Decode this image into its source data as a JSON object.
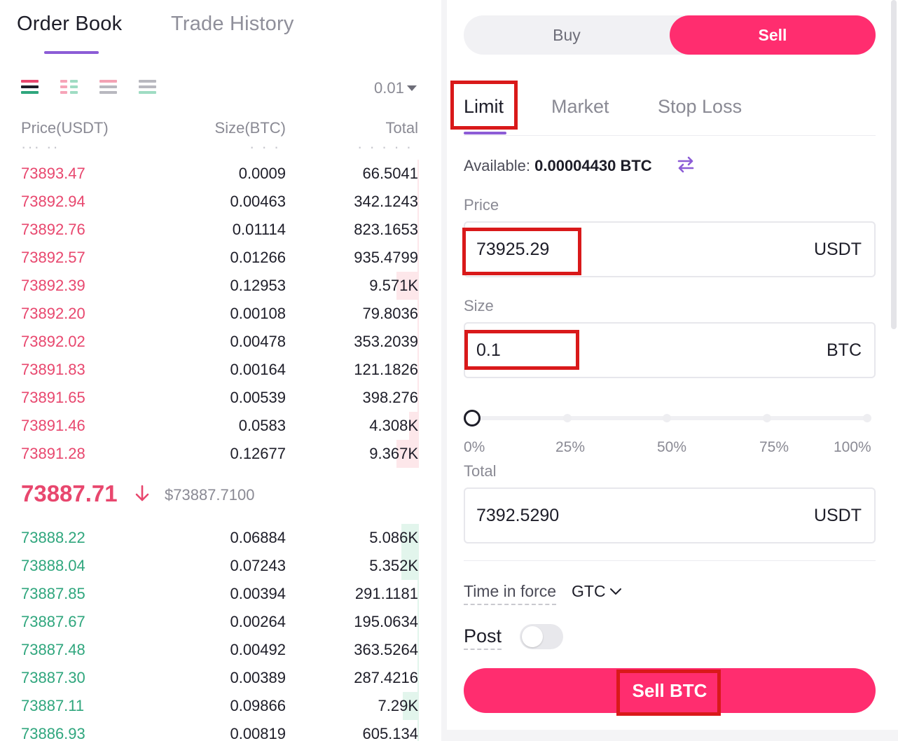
{
  "order_book": {
    "tabs": [
      "Order Book",
      "Trade History"
    ],
    "precision": "0.01",
    "columns": {
      "price": "Price(USDT)",
      "size": "Size(BTC)",
      "total": "Total"
    },
    "asks": [
      {
        "price": "73893.47",
        "size": "0.0009",
        "total": "66.5041",
        "depth": 0.005
      },
      {
        "price": "73892.94",
        "size": "0.00463",
        "total": "342.1243",
        "depth": 0.005
      },
      {
        "price": "73892.76",
        "size": "0.01114",
        "total": "823.1653",
        "depth": 0.01
      },
      {
        "price": "73892.57",
        "size": "0.01266",
        "total": "935.4799",
        "depth": 0.01
      },
      {
        "price": "73892.39",
        "size": "0.12953",
        "total": "9.571K",
        "depth": 0.14
      },
      {
        "price": "73892.20",
        "size": "0.00108",
        "total": "79.8036",
        "depth": 0.005
      },
      {
        "price": "73892.02",
        "size": "0.00478",
        "total": "353.2039",
        "depth": 0.005
      },
      {
        "price": "73891.83",
        "size": "0.00164",
        "total": "121.1826",
        "depth": 0.005
      },
      {
        "price": "73891.65",
        "size": "0.00539",
        "total": "398.276",
        "depth": 0.005
      },
      {
        "price": "73891.46",
        "size": "0.0583",
        "total": "4.308K",
        "depth": 0.06
      },
      {
        "price": "73891.28",
        "size": "0.12677",
        "total": "9.367K",
        "depth": 0.14
      }
    ],
    "last_price": "73887.71",
    "last_price_usd": "$73887.7100",
    "bids": [
      {
        "price": "73888.22",
        "size": "0.06884",
        "total": "5.086K",
        "depth": 0.11
      },
      {
        "price": "73888.04",
        "size": "0.07243",
        "total": "5.352K",
        "depth": 0.11
      },
      {
        "price": "73887.85",
        "size": "0.00394",
        "total": "291.1181",
        "depth": 0.005
      },
      {
        "price": "73887.67",
        "size": "0.00264",
        "total": "195.0634",
        "depth": 0.005
      },
      {
        "price": "73887.48",
        "size": "0.00492",
        "total": "363.5264",
        "depth": 0.005
      },
      {
        "price": "73887.30",
        "size": "0.00389",
        "total": "287.4216",
        "depth": 0.005
      },
      {
        "price": "73887.11",
        "size": "0.09866",
        "total": "7.29K",
        "depth": 0.1
      },
      {
        "price": "73886.93",
        "size": "0.00819",
        "total": "605.134",
        "depth": 0.005
      }
    ]
  },
  "trade_panel": {
    "side_buy": "Buy",
    "side_sell": "Sell",
    "order_tabs": [
      "Limit",
      "Market",
      "Stop Loss"
    ],
    "available_label": "Available:",
    "available_value": "0.00004430 BTC",
    "price_label": "Price",
    "price_value": "73925.29",
    "price_unit": "USDT",
    "size_label": "Size",
    "size_value": "0.1",
    "size_unit": "BTC",
    "slider_value": 0,
    "slider_marks": [
      "0%",
      "25%",
      "50%",
      "75%",
      "100%"
    ],
    "total_label": "Total",
    "total_value": "7392.5290",
    "total_unit": "USDT",
    "tif_label": "Time in force",
    "tif_value": "GTC",
    "post_label": "Post",
    "post_enabled": false,
    "submit_label": "Sell BTC"
  },
  "colors": {
    "accent": "#8c5cd6",
    "sell": "#ff2d6f",
    "ask": "#e8476e",
    "bid": "#2fa67d",
    "highlight": "#d9191a"
  },
  "icons": [
    "order-book-both-icon",
    "order-book-bids-icon",
    "order-book-asks-icon",
    "order-book-list-icon",
    "swap-icon",
    "down-arrow-icon",
    "chevron-down-icon"
  ]
}
